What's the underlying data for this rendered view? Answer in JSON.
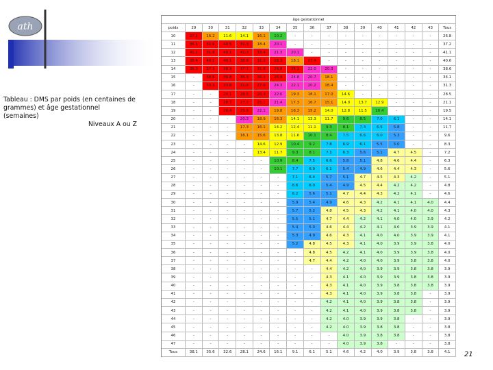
{
  "logo": "ath",
  "caption": "Tableau  : DMS par poids (en centaines de grammes) et âge gestationnel (semaines)",
  "level": "Niveaux A ou Z",
  "page_number": "21",
  "table": {
    "group_header": "âge gestationnel",
    "header": [
      "poids",
      "29",
      "30",
      "31",
      "32",
      "33",
      "34",
      "35",
      "36",
      "37",
      "38",
      "39",
      "40",
      "41",
      "42",
      "43",
      "Tous"
    ],
    "rows": [
      [
        "10",
        "27.1",
        "16.2",
        "11.6",
        "14.1",
        "16.1",
        "10.2",
        "-",
        "-",
        "-",
        "-",
        "-",
        "-",
        "-",
        "-",
        "-",
        "26.8"
      ],
      [
        "11",
        "36.1",
        "31.6",
        "40.5",
        "31.3",
        "18.4",
        "20.1",
        "-",
        "-",
        "-",
        "-",
        "-",
        "-",
        "-",
        "-",
        "-",
        "37.2"
      ],
      [
        "12",
        "41.1",
        "31.8",
        "40.1",
        "41.3",
        "33.4",
        "21.3",
        "20.1",
        "-",
        "-",
        "-",
        "-",
        "-",
        "-",
        "-",
        "-",
        "41.1"
      ],
      [
        "13",
        "38.4",
        "40.1",
        "40.1",
        "38.8",
        "31.2",
        "28.3",
        "18.1",
        "27.4",
        "-",
        "-",
        "-",
        "-",
        "-",
        "-",
        "-",
        "40.6"
      ],
      [
        "14",
        "36.3",
        "37.1",
        "38.3",
        "37.7",
        "31.8",
        "26.8",
        "25.1",
        "22.0",
        "20.3",
        "-",
        "-",
        "-",
        "-",
        "-",
        "-",
        "38.6"
      ],
      [
        "15",
        "-",
        "38.6",
        "36.8",
        "35.3",
        "30.1",
        "26.9",
        "24.8",
        "20.7",
        "18.1",
        "-",
        "-",
        "-",
        "-",
        "-",
        "-",
        "34.1"
      ],
      [
        "16",
        "-",
        "33.1",
        "33.8",
        "31.6",
        "27.0",
        "24.3",
        "22.1",
        "20.2",
        "18.4",
        "-",
        "-",
        "-",
        "-",
        "-",
        "-",
        "31.3"
      ],
      [
        "17",
        "-",
        "-",
        "29.1",
        "28.5",
        "26.3",
        "22.6",
        "19.3",
        "18.1",
        "17.0",
        "14.6",
        "-",
        "-",
        "-",
        "-",
        "-",
        "28.5"
      ],
      [
        "18",
        "-",
        "-",
        "28.7",
        "27.2",
        "25.1",
        "21.4",
        "17.3",
        "16.7",
        "15.1",
        "14.0",
        "13.7",
        "12.9",
        "-",
        "-",
        "-",
        "21.1"
      ],
      [
        "19",
        "-",
        "-",
        "26.4",
        "25.6",
        "22.1",
        "19.8",
        "16.3",
        "15.2",
        "14.0",
        "12.8",
        "11.5",
        "10.4",
        "-",
        "-",
        "-",
        "19.5"
      ],
      [
        "20",
        "-",
        "-",
        "-",
        "20.3",
        "18.9",
        "16.3",
        "14.1",
        "13.3",
        "11.7",
        "9.6",
        "8.5",
        "7.0",
        "6.1",
        "-",
        "-",
        "14.1"
      ],
      [
        "21",
        "-",
        "-",
        "-",
        "17.3",
        "16.1",
        "14.2",
        "12.4",
        "11.1",
        "9.3",
        "8.1",
        "7.3",
        "6.5",
        "5.8",
        "-",
        "-",
        "11.7"
      ],
      [
        "22",
        "-",
        "-",
        "-",
        "16.1",
        "15.6",
        "13.8",
        "11.6",
        "10.1",
        "8.4",
        "7.5",
        "6.6",
        "6.0",
        "5.3",
        "-",
        "-",
        "9.6"
      ],
      [
        "23",
        "-",
        "-",
        "-",
        "-",
        "14.6",
        "12.9",
        "10.4",
        "9.2",
        "7.8",
        "6.9",
        "6.1",
        "5.5",
        "5.0",
        "-",
        "-",
        "8.3"
      ],
      [
        "24",
        "-",
        "-",
        "-",
        "-",
        "13.4",
        "11.7",
        "9.3",
        "8.1",
        "7.1",
        "6.3",
        "5.6",
        "5.1",
        "4.7",
        "4.5",
        "-",
        "7.2"
      ],
      [
        "25",
        "-",
        "-",
        "-",
        "-",
        "-",
        "10.9",
        "8.4",
        "7.5",
        "6.6",
        "5.8",
        "5.1",
        "4.8",
        "4.6",
        "4.4",
        "-",
        "6.3"
      ],
      [
        "26",
        "-",
        "-",
        "-",
        "-",
        "-",
        "10.1",
        "7.7",
        "6.9",
        "6.1",
        "5.4",
        "4.9",
        "4.6",
        "4.4",
        "4.3",
        "-",
        "5.6"
      ],
      [
        "27",
        "-",
        "-",
        "-",
        "-",
        "-",
        "-",
        "7.1",
        "6.4",
        "5.7",
        "5.1",
        "4.7",
        "4.5",
        "4.3",
        "4.2",
        "-",
        "5.1"
      ],
      [
        "28",
        "-",
        "-",
        "-",
        "-",
        "-",
        "-",
        "6.6",
        "6.0",
        "5.4",
        "4.9",
        "4.5",
        "4.4",
        "4.2",
        "4.2",
        "-",
        "4.8"
      ],
      [
        "29",
        "-",
        "-",
        "-",
        "-",
        "-",
        "-",
        "6.2",
        "5.6",
        "5.1",
        "4.7",
        "4.4",
        "4.3",
        "4.2",
        "4.1",
        "-",
        "4.6"
      ],
      [
        "30",
        "-",
        "-",
        "-",
        "-",
        "-",
        "-",
        "5.9",
        "5.4",
        "4.9",
        "4.6",
        "4.3",
        "4.2",
        "4.1",
        "4.1",
        "4.0",
        "4.4"
      ],
      [
        "31",
        "-",
        "-",
        "-",
        "-",
        "-",
        "-",
        "5.7",
        "5.2",
        "4.8",
        "4.5",
        "4.3",
        "4.2",
        "4.1",
        "4.0",
        "4.0",
        "4.3"
      ],
      [
        "32",
        "-",
        "-",
        "-",
        "-",
        "-",
        "-",
        "5.5",
        "5.1",
        "4.7",
        "4.4",
        "4.2",
        "4.1",
        "4.0",
        "4.0",
        "3.9",
        "4.2"
      ],
      [
        "33",
        "-",
        "-",
        "-",
        "-",
        "-",
        "-",
        "5.4",
        "5.0",
        "4.6",
        "4.4",
        "4.2",
        "4.1",
        "4.0",
        "3.9",
        "3.9",
        "4.1"
      ],
      [
        "34",
        "-",
        "-",
        "-",
        "-",
        "-",
        "-",
        "5.3",
        "4.9",
        "4.6",
        "4.3",
        "4.1",
        "4.0",
        "4.0",
        "3.9",
        "3.9",
        "4.1"
      ],
      [
        "35",
        "-",
        "-",
        "-",
        "-",
        "-",
        "-",
        "5.2",
        "4.8",
        "4.5",
        "4.3",
        "4.1",
        "4.0",
        "3.9",
        "3.9",
        "3.8",
        "4.0"
      ],
      [
        "36",
        "-",
        "-",
        "-",
        "-",
        "-",
        "-",
        "-",
        "4.8",
        "4.5",
        "4.2",
        "4.1",
        "4.0",
        "3.9",
        "3.9",
        "3.8",
        "4.0"
      ],
      [
        "37",
        "-",
        "-",
        "-",
        "-",
        "-",
        "-",
        "-",
        "4.7",
        "4.4",
        "4.2",
        "4.0",
        "4.0",
        "3.9",
        "3.8",
        "3.8",
        "4.0"
      ],
      [
        "38",
        "-",
        "-",
        "-",
        "-",
        "-",
        "-",
        "-",
        "-",
        "4.4",
        "4.2",
        "4.0",
        "3.9",
        "3.9",
        "3.8",
        "3.8",
        "3.9"
      ],
      [
        "39",
        "-",
        "-",
        "-",
        "-",
        "-",
        "-",
        "-",
        "-",
        "4.3",
        "4.1",
        "4.0",
        "3.9",
        "3.9",
        "3.8",
        "3.8",
        "3.9"
      ],
      [
        "40",
        "-",
        "-",
        "-",
        "-",
        "-",
        "-",
        "-",
        "-",
        "4.3",
        "4.1",
        "4.0",
        "3.9",
        "3.8",
        "3.8",
        "3.8",
        "3.9"
      ],
      [
        "41",
        "-",
        "-",
        "-",
        "-",
        "-",
        "-",
        "-",
        "-",
        "4.3",
        "4.1",
        "4.0",
        "3.9",
        "3.8",
        "3.8",
        "-",
        "3.9"
      ],
      [
        "42",
        "-",
        "-",
        "-",
        "-",
        "-",
        "-",
        "-",
        "-",
        "4.2",
        "4.1",
        "4.0",
        "3.9",
        "3.8",
        "3.8",
        "-",
        "3.9"
      ],
      [
        "43",
        "-",
        "-",
        "-",
        "-",
        "-",
        "-",
        "-",
        "-",
        "4.2",
        "4.1",
        "4.0",
        "3.9",
        "3.8",
        "3.8",
        "-",
        "3.9"
      ],
      [
        "44",
        "-",
        "-",
        "-",
        "-",
        "-",
        "-",
        "-",
        "-",
        "4.2",
        "4.0",
        "3.9",
        "3.9",
        "3.8",
        "-",
        "-",
        "3.9"
      ],
      [
        "45",
        "-",
        "-",
        "-",
        "-",
        "-",
        "-",
        "-",
        "-",
        "4.2",
        "4.0",
        "3.9",
        "3.8",
        "3.8",
        "-",
        "-",
        "3.8"
      ],
      [
        "46",
        "-",
        "-",
        "-",
        "-",
        "-",
        "-",
        "-",
        "-",
        "-",
        "4.0",
        "3.9",
        "3.8",
        "3.8",
        "-",
        "-",
        "3.8"
      ],
      [
        "47",
        "-",
        "-",
        "-",
        "-",
        "-",
        "-",
        "-",
        "-",
        "-",
        "4.0",
        "3.9",
        "3.8",
        "-",
        "-",
        "-",
        "3.8"
      ],
      [
        "Tous",
        "38.1",
        "35.6",
        "32.6",
        "28.1",
        "24.6",
        "16.1",
        "9.1",
        "6.1",
        "5.1",
        "4.6",
        "4.2",
        "4.0",
        "3.9",
        "3.8",
        "3.8",
        "4.1"
      ]
    ]
  }
}
